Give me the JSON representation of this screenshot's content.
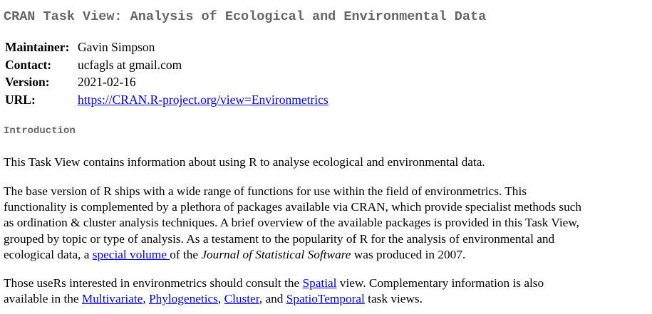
{
  "title": "CRAN Task View: Analysis of Ecological and Environmental Data",
  "meta": {
    "maintainer_label": "Maintainer:",
    "maintainer": "Gavin Simpson",
    "contact_label": "Contact:",
    "contact": "ucfagls at gmail.com",
    "version_label": "Version:",
    "version": "2021-02-16",
    "url_label": "URL:",
    "url": "https://CRAN.R-project.org/view=Environmetrics"
  },
  "section_title": "Introduction",
  "p1": "This Task View contains information about using R to analyse ecological and environmental data.",
  "p2": {
    "line1": "The base version of R ships with a wide range of functions for use within the field of environmetrics. This",
    "line2": "functionality is complemented by a plethora of packages available via CRAN, which provide specialist methods such",
    "line3": "as ordination & cluster analysis techniques. A brief overview of the available packages is provided in this Task View,",
    "line4": "grouped by topic or type of analysis. As a testament to the popularity of R for the analysis of environmental and",
    "line5_pre": "ecological data, a ",
    "line5_link": "special volume ",
    "line5_mid": "of the ",
    "line5_journal": "Journal of Statistical Software",
    "line5_post": " was produced in 2007."
  },
  "p3": {
    "line1_pre": "Those useRs interested in environmetrics should consult the ",
    "line1_link": "Spatial",
    "line1_post": " view. Complementary information is also",
    "line2_pre": "available in the ",
    "link_multivariate": "Multivariate",
    "sep1": ", ",
    "link_phylogenetics": "Phylogenetics",
    "sep2": ", ",
    "link_cluster": "Cluster",
    "sep3": ", and ",
    "link_spatiotemporal": "SpatioTemporal",
    "line2_post": " task views."
  }
}
